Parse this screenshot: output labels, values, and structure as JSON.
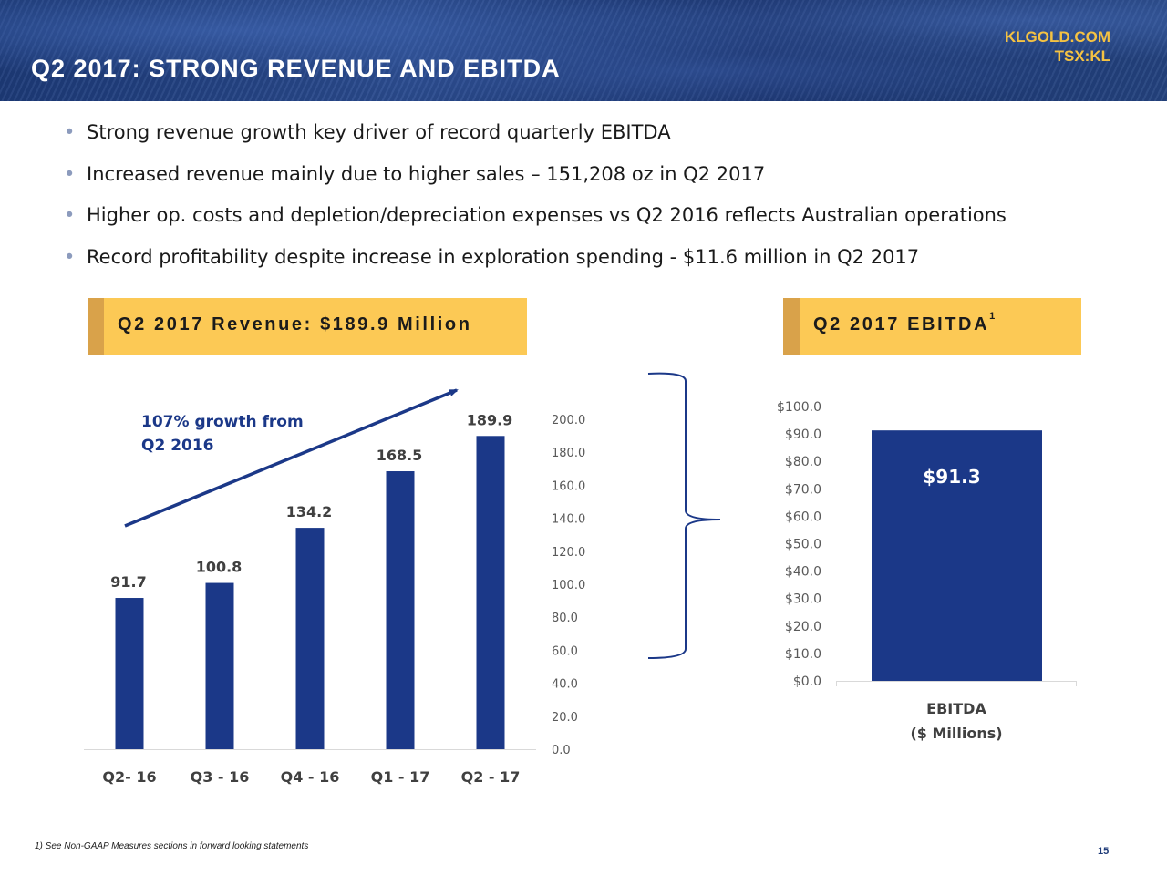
{
  "header": {
    "title": "Q2 2017: STRONG REVENUE AND EBITDA",
    "site": "KLGOLD.COM",
    "ticker": "TSX:KL"
  },
  "bullets": [
    "Strong revenue growth key driver of record quarterly EBITDA",
    "Increased revenue mainly due to higher sales – 151,208 oz in Q2 2017",
    "Higher op. costs and depletion/depreciation expenses vs Q2 2016 reflects Australian operations",
    "Record profitability despite increase in exploration spending - $11.6 million in Q2 2017"
  ],
  "revenue_panel": {
    "title": "Q2 2017 Revenue: $189.9 Million"
  },
  "ebitda_panel": {
    "title": "Q2 2017 EBITDA",
    "footnote_marker": "1"
  },
  "annotation": {
    "line1": "107% growth from",
    "line2": "Q2 2016"
  },
  "footnote": "1) See Non-GAAP Measures sections in forward looking statements",
  "page_number": "15",
  "colors": {
    "bar": "#1b3888",
    "panel_header": "#fcc955",
    "panel_stripe": "#d9a24a",
    "ticker": "#f5c242",
    "annotation": "#1b3888"
  },
  "chart_data": [
    {
      "type": "bar",
      "categories": [
        "Q2- 16",
        "Q3 - 16",
        "Q4 - 16",
        "Q1 - 17",
        "Q2 - 17"
      ],
      "values": [
        91.7,
        100.8,
        134.2,
        168.5,
        189.9
      ],
      "data_labels": [
        "91.7",
        "100.8",
        "134.2",
        "168.5",
        "189.9"
      ],
      "ylim": [
        0,
        200
      ],
      "yticks": [
        "0.0",
        "20.0",
        "40.0",
        "60.0",
        "80.0",
        "100.0",
        "120.0",
        "140.0",
        "160.0",
        "180.0",
        "200.0"
      ],
      "grid": false
    },
    {
      "type": "bar",
      "categories": [
        "EBITDA"
      ],
      "xlabel": "($ Millions)",
      "values": [
        91.3
      ],
      "data_labels": [
        "$91.3"
      ],
      "ylim": [
        0,
        100
      ],
      "yticks": [
        "$0.0",
        "$10.0",
        "$20.0",
        "$30.0",
        "$40.0",
        "$50.0",
        "$60.0",
        "$70.0",
        "$80.0",
        "$90.0",
        "$100.0"
      ],
      "grid": false
    }
  ]
}
